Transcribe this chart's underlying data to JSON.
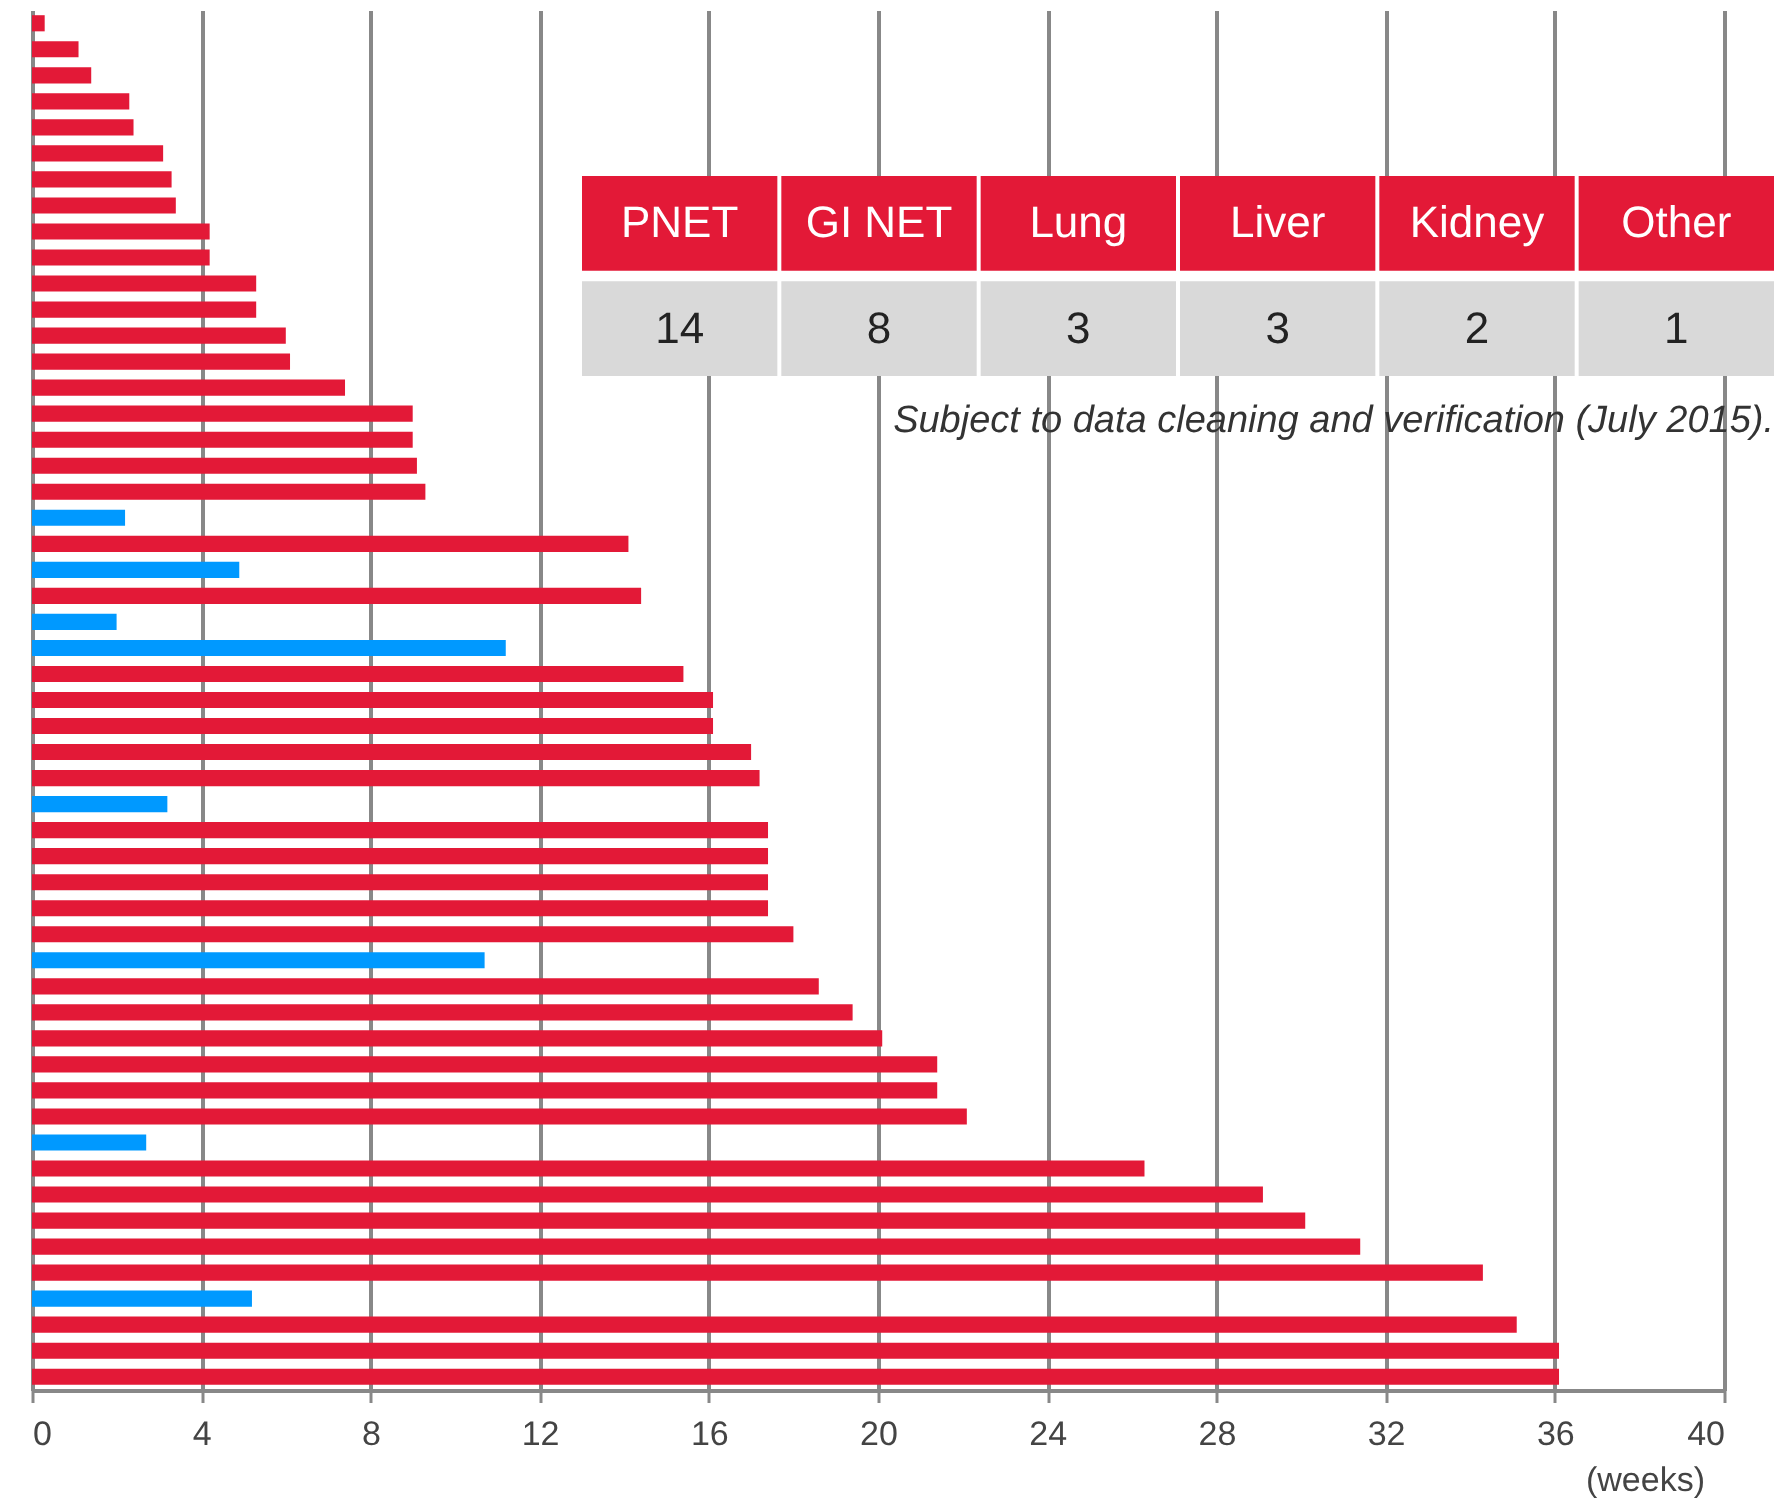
{
  "chart_data": [
    {
      "type": "bar",
      "orientation": "horizontal",
      "xlabel": "(weeks)",
      "categories": [
        null,
        null,
        null,
        null,
        null,
        null,
        null,
        null,
        null,
        null,
        null,
        null,
        null,
        null,
        null,
        null,
        null,
        null,
        null,
        null,
        null,
        null,
        null,
        null,
        null,
        null,
        null,
        null,
        null,
        null,
        null,
        null,
        null,
        null,
        null,
        null,
        null,
        null,
        null,
        null,
        null,
        null,
        null,
        null,
        null,
        null,
        null,
        null,
        null,
        null,
        null,
        null,
        null
      ],
      "values": [
        0.3,
        1.1,
        1.4,
        2.3,
        2.4,
        3.1,
        3.3,
        3.4,
        4.2,
        4.2,
        5.3,
        5.3,
        6.0,
        6.1,
        7.4,
        9.0,
        9.0,
        9.1,
        9.3,
        2.2,
        14.1,
        4.9,
        14.4,
        2.0,
        11.2,
        15.4,
        16.1,
        16.1,
        17.0,
        17.2,
        3.2,
        17.4,
        17.4,
        17.4,
        17.4,
        18.0,
        10.7,
        18.6,
        19.4,
        20.1,
        21.4,
        21.4,
        22.1,
        2.7,
        26.3,
        29.1,
        30.1,
        31.4,
        34.3,
        5.2,
        35.1,
        36.1,
        36.1
      ],
      "colors": [
        "#e31937",
        "#e31937",
        "#e31937",
        "#e31937",
        "#e31937",
        "#e31937",
        "#e31937",
        "#e31937",
        "#e31937",
        "#e31937",
        "#e31937",
        "#e31937",
        "#e31937",
        "#e31937",
        "#e31937",
        "#e31937",
        "#e31937",
        "#e31937",
        "#e31937",
        "#0099ff",
        "#e31937",
        "#0099ff",
        "#e31937",
        "#0099ff",
        "#0099ff",
        "#e31937",
        "#e31937",
        "#e31937",
        "#e31937",
        "#e31937",
        "#0099ff",
        "#e31937",
        "#e31937",
        "#e31937",
        "#e31937",
        "#e31937",
        "#0099ff",
        "#e31937",
        "#e31937",
        "#e31937",
        "#e31937",
        "#e31937",
        "#e31937",
        "#0099ff",
        "#e31937",
        "#e31937",
        "#e31937",
        "#e31937",
        "#e31937",
        "#0099ff",
        "#e31937",
        "#e31937",
        "#e31937"
      ],
      "xlim": [
        0,
        40
      ],
      "xticks": [
        0,
        4,
        8,
        12,
        16,
        20,
        24,
        28,
        32,
        36,
        40
      ],
      "grid": "x",
      "tick_labels": "x",
      "annotations": [
        "Subject to data cleaning and verification (July 2015)."
      ]
    },
    {
      "type": "other",
      "categories": [
        "PNET",
        "GI NET",
        "Lung",
        "Liver",
        "Kidney",
        "Other"
      ],
      "values": [
        14,
        8,
        3,
        3,
        2,
        1
      ],
      "data_labels": true,
      "color": "#d9d9d9"
    }
  ]
}
